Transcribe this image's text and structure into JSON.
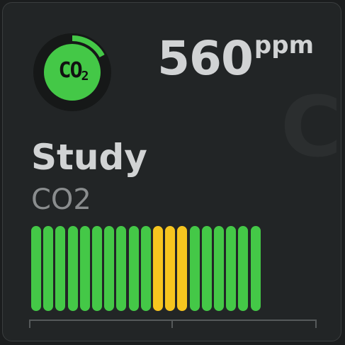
{
  "sensor": {
    "icon": "co2-icon",
    "icon_label_main": "CO",
    "icon_label_sub": "2",
    "watermark": "CO",
    "value": "560",
    "unit": "ppm",
    "name": "Study",
    "type": "CO2",
    "gauge_fraction": 0.17
  },
  "history": {
    "levels": [
      "good",
      "good",
      "good",
      "good",
      "good",
      "good",
      "good",
      "good",
      "good",
      "good",
      "warn",
      "warn",
      "warn",
      "good",
      "good",
      "good",
      "good",
      "good",
      "good"
    ]
  },
  "colors": {
    "good": "#44c847",
    "warn": "#f6c51f",
    "background": "#222526",
    "text": "#d1d3d4",
    "muted": "#8a8d8e"
  }
}
